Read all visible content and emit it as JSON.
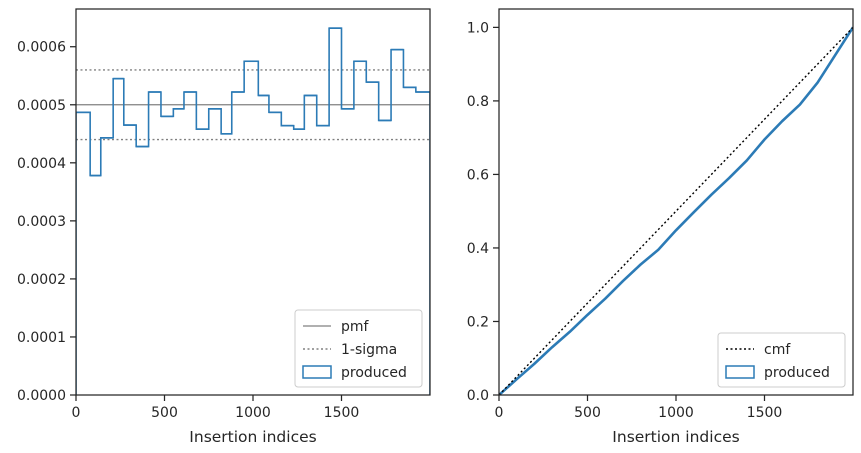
{
  "chart_data": [
    {
      "type": "histogram",
      "xlabel": "Insertion indices",
      "ylabel": "",
      "xlim": [
        0,
        2000
      ],
      "ylim": [
        0,
        0.000665
      ],
      "x_ticks": [
        0,
        500,
        1000,
        1500
      ],
      "x_tick_labels": [
        "0",
        "500",
        "1000",
        "1500"
      ],
      "y_ticks": [
        0,
        0.0001,
        0.0002,
        0.0003,
        0.0004,
        0.0005,
        0.0006
      ],
      "y_tick_labels": [
        "0.0000",
        "0.0001",
        "0.0002",
        "0.0003",
        "0.0004",
        "0.0005",
        "0.0006"
      ],
      "grid": false,
      "legend_position": "lower right",
      "pmf": 0.0005,
      "sigma_band": [
        0.00044,
        0.00056
      ],
      "bin_edges": [
        0,
        80,
        140,
        210,
        270,
        340,
        410,
        480,
        550,
        610,
        680,
        750,
        820,
        880,
        950,
        1030,
        1090,
        1160,
        1230,
        1290,
        1360,
        1430,
        1500,
        1570,
        1640,
        1710,
        1780,
        1850,
        1920,
        2000
      ],
      "produced": [
        0.000487,
        0.000378,
        0.000443,
        0.000545,
        0.000465,
        0.000428,
        0.000522,
        0.00048,
        0.000493,
        0.000522,
        0.000458,
        0.000493,
        0.00045,
        0.000522,
        0.000575,
        0.000516,
        0.000487,
        0.000464,
        0.000458,
        0.000516,
        0.000464,
        0.000632,
        0.000493,
        0.000575,
        0.000539,
        0.000473,
        0.000595,
        0.00053,
        0.000522
      ],
      "series": [
        {
          "name": "pmf",
          "color": "#808080",
          "style": "solid"
        },
        {
          "name": "1-sigma",
          "color": "#808080",
          "style": "dotted"
        },
        {
          "name": "produced",
          "color": "#1f77b4",
          "style": "step"
        }
      ]
    },
    {
      "type": "line",
      "xlabel": "Insertion indices",
      "ylabel": "",
      "xlim": [
        0,
        2000
      ],
      "ylim": [
        0,
        1.05
      ],
      "x_ticks": [
        0,
        500,
        1000,
        1500
      ],
      "x_tick_labels": [
        "0",
        "500",
        "1000",
        "1500"
      ],
      "y_ticks": [
        0,
        0.2,
        0.4,
        0.6,
        0.8,
        1.0
      ],
      "y_tick_labels": [
        "0.0",
        "0.2",
        "0.4",
        "0.6",
        "0.8",
        "1.0"
      ],
      "grid": false,
      "legend_position": "lower right",
      "cmf": {
        "x": [
          0,
          2000
        ],
        "y": [
          0,
          1.0
        ]
      },
      "produced": {
        "x": [
          0,
          100,
          200,
          300,
          400,
          500,
          600,
          700,
          800,
          900,
          1000,
          1100,
          1200,
          1300,
          1400,
          1500,
          1600,
          1700,
          1800,
          1900,
          2000
        ],
        "y": [
          0,
          0.043,
          0.085,
          0.13,
          0.172,
          0.218,
          0.262,
          0.31,
          0.355,
          0.395,
          0.448,
          0.497,
          0.545,
          0.59,
          0.638,
          0.695,
          0.745,
          0.79,
          0.85,
          0.925,
          1.0
        ]
      },
      "series": [
        {
          "name": "cmf",
          "color": "#000000",
          "style": "dotted"
        },
        {
          "name": "produced",
          "color": "#1f77b4",
          "style": "solid"
        }
      ]
    }
  ]
}
